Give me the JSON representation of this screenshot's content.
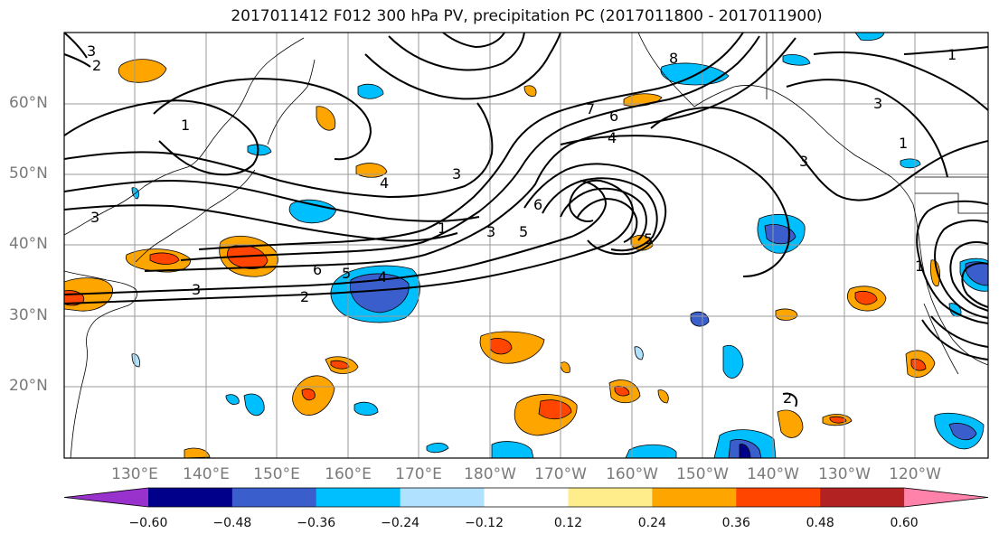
{
  "title": "2017011412 F012 300 hPa PV, precipitation PC (2017011800 - 2017011900)",
  "lat_labels": [
    "60°N",
    "50°N",
    "40°N",
    "30°N",
    "20°N"
  ],
  "lon_labels": [
    "130°E",
    "140°E",
    "150°E",
    "160°E",
    "170°E",
    "180°W",
    "170°W",
    "160°W",
    "150°W",
    "140°W",
    "130°W",
    "120°W"
  ],
  "colorbar": {
    "colors": [
      "#9932cc",
      "#00008b",
      "#3a5fcd",
      "#00bfff",
      "#b0e2ff",
      "#ffffff",
      "#ffec8b",
      "#ffa500",
      "#ff4500",
      "#b22222",
      "#ff82ab"
    ],
    "tick_labels": [
      "−0.60",
      "−0.48",
      "−0.36",
      "−0.24",
      "−0.12",
      "0.12",
      "0.24",
      "0.36",
      "0.48",
      "0.60"
    ]
  },
  "pv_contour_labels": [
    "1",
    "2",
    "3",
    "4",
    "5",
    "6",
    "7",
    "8"
  ]
}
